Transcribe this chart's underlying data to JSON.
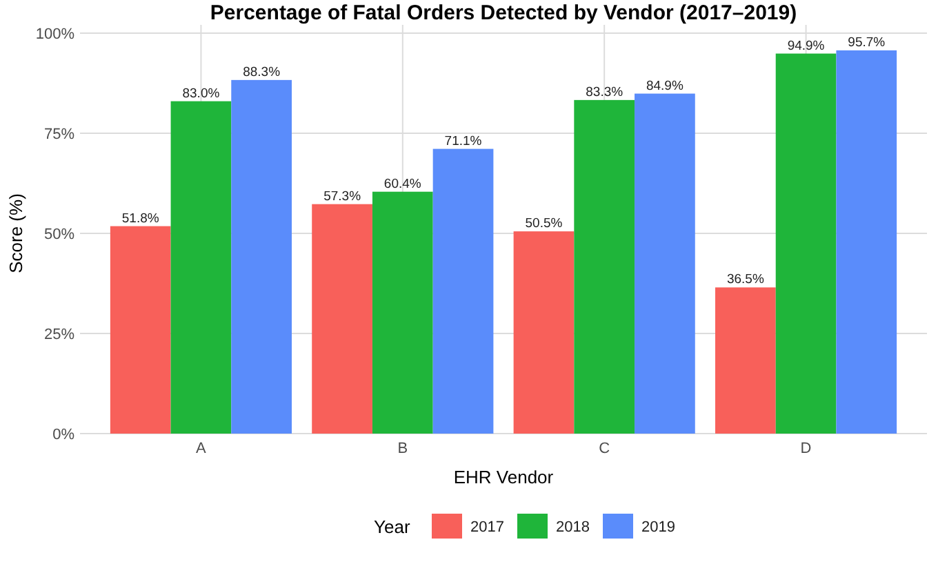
{
  "chart_data": {
    "type": "bar",
    "title": "Percentage of Fatal Orders Detected by Vendor (2017–2019)",
    "xlabel": "EHR Vendor",
    "ylabel": "Score (%)",
    "legend_title": "Year",
    "categories": [
      "A",
      "B",
      "C",
      "D"
    ],
    "series": [
      {
        "name": "2017",
        "color": "#f8605a",
        "values": [
          51.8,
          57.3,
          50.5,
          36.5
        ],
        "value_labels": [
          "51.8%",
          "57.3%",
          "50.5%",
          "36.5%"
        ]
      },
      {
        "name": "2018",
        "color": "#1fb53a",
        "values": [
          83.0,
          60.4,
          83.3,
          94.9
        ],
        "value_labels": [
          "83.0%",
          "60.4%",
          "83.3%",
          "94.9%"
        ]
      },
      {
        "name": "2019",
        "color": "#5a8cfb",
        "values": [
          88.3,
          71.1,
          84.9,
          95.7
        ],
        "value_labels": [
          "88.3%",
          "71.1%",
          "84.9%",
          "95.7%"
        ]
      }
    ],
    "ylim": [
      0,
      100
    ],
    "yticks": [
      {
        "value": 0,
        "label": "0%"
      },
      {
        "value": 25,
        "label": "25%"
      },
      {
        "value": 50,
        "label": "50%"
      },
      {
        "value": 75,
        "label": "75%"
      },
      {
        "value": 100,
        "label": "100%"
      }
    ],
    "grid": true,
    "legend": "bottom"
  }
}
